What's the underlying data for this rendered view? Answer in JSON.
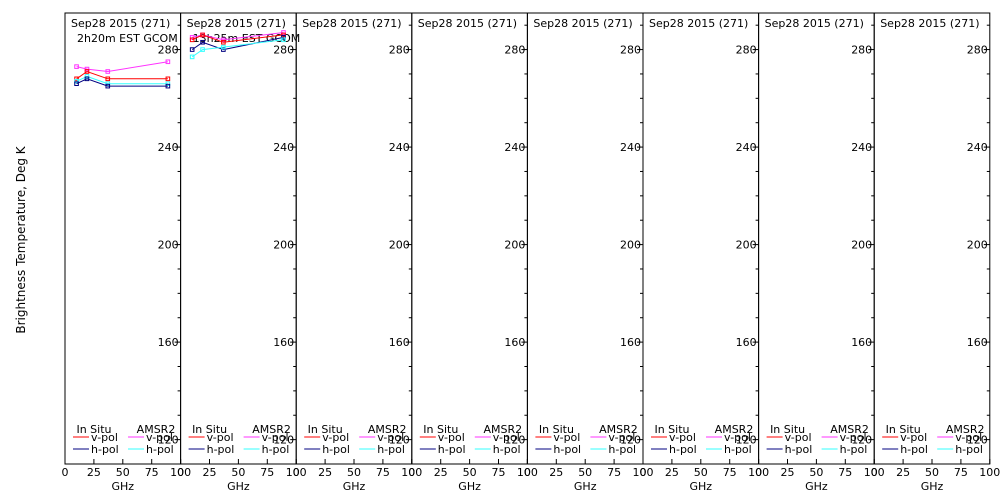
{
  "figure": {
    "ylabel": "Brightness Temperature, Deg K",
    "xlabel": "GHz"
  },
  "chart_data": {
    "type": "line",
    "x_unit": "GHz",
    "xlim": [
      0,
      100
    ],
    "ylim": [
      110,
      295
    ],
    "xticks": [
      0,
      25,
      50,
      75,
      100
    ],
    "yticks": [
      120,
      160,
      200,
      240,
      280
    ],
    "legend": {
      "placement": "bottom",
      "headers": [
        "In Situ",
        "AMSR2"
      ],
      "labels": [
        "v-pol",
        "h-pol"
      ]
    },
    "colors": {
      "insitu_v": "#ff0000",
      "insitu_h": "#000080",
      "amsr2_v": "#ff33ff",
      "amsr2_h": "#33ffff"
    },
    "panels": [
      {
        "title": "Sep28 2015 (271)",
        "subtitle": "2h20m EST GCOM",
        "series": [
          {
            "key": "amsr2_v",
            "x": [
              10,
              19,
              37,
              89
            ],
            "y": [
              273,
              272,
              271,
              275
            ]
          },
          {
            "key": "insitu_v",
            "x": [
              10,
              19,
              37,
              89
            ],
            "y": [
              268,
              271,
              268,
              268
            ]
          },
          {
            "key": "amsr2_h",
            "x": [
              10,
              19,
              37,
              89
            ],
            "y": [
              267,
              269,
              266,
              266
            ]
          },
          {
            "key": "insitu_h",
            "x": [
              10,
              19,
              37,
              89
            ],
            "y": [
              266,
              268,
              265,
              265
            ]
          }
        ]
      },
      {
        "title": "Sep28 2015 (271)",
        "subtitle": "13h25m EST GCOM",
        "series": [
          {
            "key": "amsr2_v",
            "x": [
              10,
              19,
              37,
              89
            ],
            "y": [
              285,
              286,
              284,
              287
            ]
          },
          {
            "key": "insitu_v",
            "x": [
              10,
              19,
              37,
              89
            ],
            "y": [
              284,
              286,
              283,
              286
            ]
          },
          {
            "key": "insitu_h",
            "x": [
              10,
              19,
              37,
              89
            ],
            "y": [
              280,
              283,
              280,
              285
            ]
          },
          {
            "key": "amsr2_h",
            "x": [
              10,
              19,
              37,
              89
            ],
            "y": [
              277,
              280,
              281,
              284
            ]
          }
        ]
      },
      {
        "title": "Sep28 2015 (271)",
        "subtitle": "",
        "series": []
      },
      {
        "title": "Sep28 2015 (271)",
        "subtitle": "",
        "series": []
      },
      {
        "title": "Sep28 2015 (271)",
        "subtitle": "",
        "series": []
      },
      {
        "title": "Sep28 2015 (271)",
        "subtitle": "",
        "series": []
      },
      {
        "title": "Sep28 2015 (271)",
        "subtitle": "",
        "series": []
      },
      {
        "title": "Sep28 2015 (271)",
        "subtitle": "",
        "series": []
      }
    ]
  }
}
